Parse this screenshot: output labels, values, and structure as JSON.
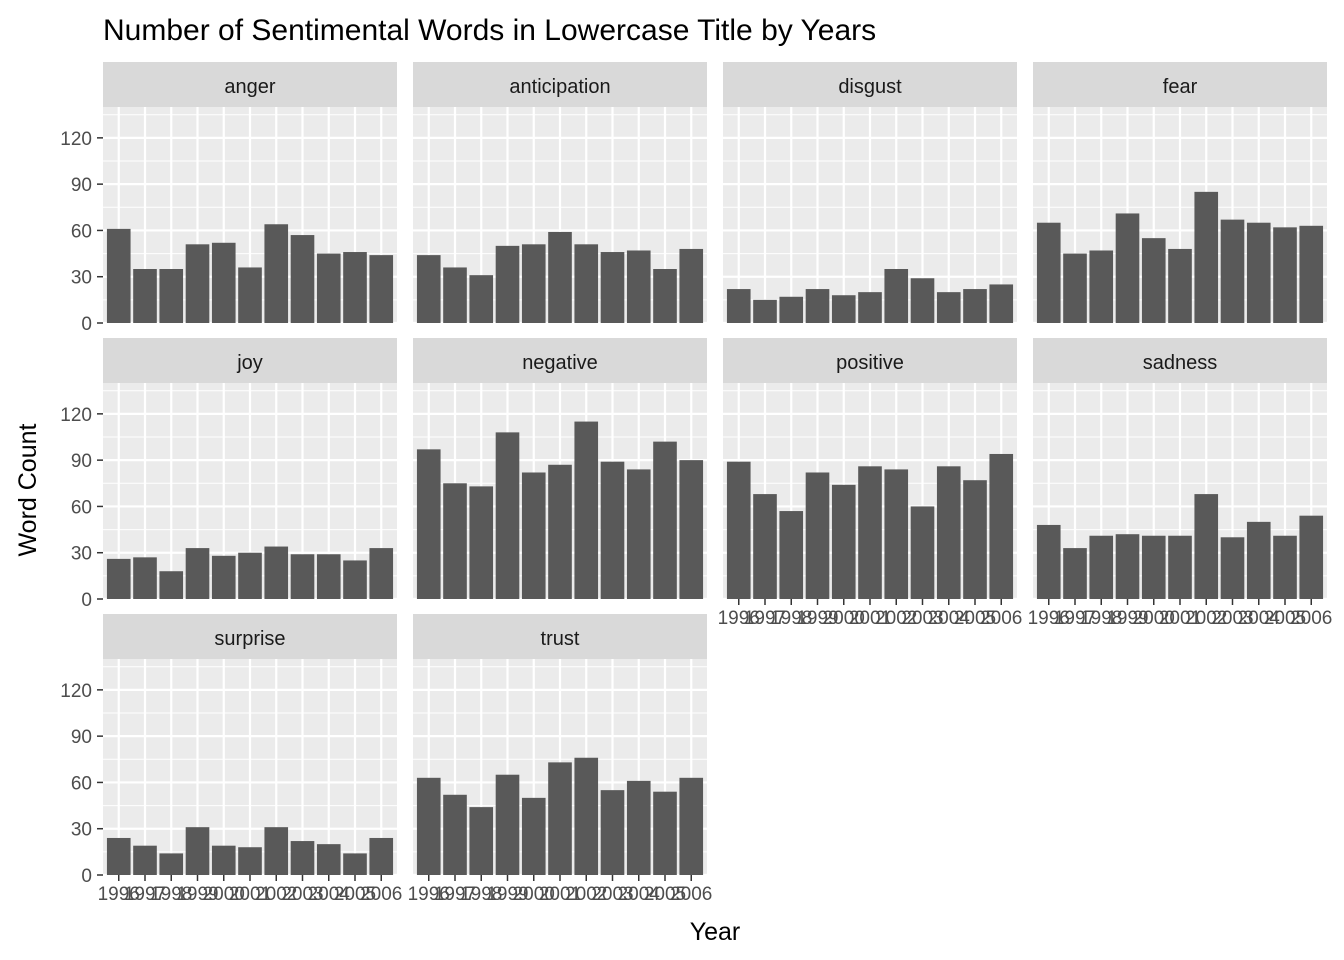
{
  "chart_data": {
    "type": "bar",
    "title": "Number of Sentimental Words in Lowercase Title by Years",
    "xlabel": "Year",
    "ylabel": "Word Count",
    "ylim": [
      0,
      140
    ],
    "yticks": [
      0,
      30,
      60,
      90,
      120
    ],
    "grid": true,
    "facet_columns": 4,
    "categories": [
      "1996",
      "1997",
      "1998",
      "1999",
      "2000",
      "2001",
      "2002",
      "2003",
      "2004",
      "2005",
      "2006"
    ],
    "facets": [
      {
        "name": "anger",
        "values": [
          61,
          35,
          35,
          51,
          52,
          36,
          64,
          57,
          45,
          46,
          44
        ]
      },
      {
        "name": "anticipation",
        "values": [
          44,
          36,
          31,
          50,
          51,
          59,
          51,
          46,
          47,
          35,
          48
        ]
      },
      {
        "name": "disgust",
        "values": [
          22,
          15,
          17,
          22,
          18,
          20,
          35,
          29,
          20,
          22,
          25
        ]
      },
      {
        "name": "fear",
        "values": [
          65,
          45,
          47,
          71,
          55,
          48,
          85,
          67,
          65,
          62,
          63
        ]
      },
      {
        "name": "joy",
        "values": [
          26,
          27,
          18,
          33,
          28,
          30,
          34,
          29,
          29,
          25,
          33
        ]
      },
      {
        "name": "negative",
        "values": [
          97,
          75,
          73,
          108,
          82,
          87,
          115,
          89,
          84,
          102,
          90
        ]
      },
      {
        "name": "positive",
        "values": [
          89,
          68,
          57,
          82,
          74,
          86,
          84,
          60,
          86,
          77,
          94
        ]
      },
      {
        "name": "sadness",
        "values": [
          48,
          33,
          41,
          42,
          41,
          41,
          68,
          40,
          50,
          41,
          54
        ]
      },
      {
        "name": "surprise",
        "values": [
          24,
          19,
          14,
          31,
          19,
          18,
          31,
          22,
          20,
          14,
          24
        ]
      },
      {
        "name": "trust",
        "values": [
          63,
          52,
          44,
          65,
          50,
          73,
          76,
          55,
          61,
          54,
          63
        ]
      }
    ]
  },
  "colors": {
    "bar": "#595959",
    "panel": "#ebebeb",
    "strip": "#d9d9d9",
    "grid_major": "#ffffff",
    "tick": "#333333"
  }
}
